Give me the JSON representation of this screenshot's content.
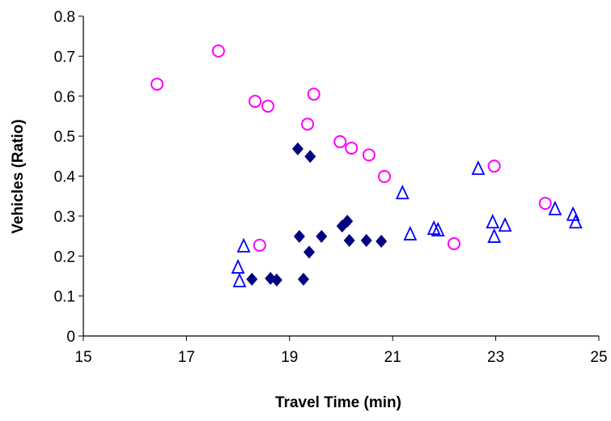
{
  "chart_data": {
    "type": "scatter",
    "xlabel": "Travel Time (min)",
    "ylabel": "Vehicles (Ratio)",
    "xlim": [
      15,
      25
    ],
    "xticks": [
      15,
      17,
      19,
      21,
      23,
      25
    ],
    "ylim": [
      0,
      0.8
    ],
    "yticks": [
      0,
      0.1,
      0.2,
      0.3,
      0.4,
      0.5,
      0.6,
      0.7,
      0.8
    ],
    "grid": false,
    "series": [
      {
        "color": "#ff00ff",
        "marker": "circle",
        "x": [
          16.43,
          17.62,
          18.33,
          18.58,
          19.47,
          19.35,
          18.42,
          19.98,
          20.2,
          20.54,
          20.84,
          22.19,
          22.97,
          23.96
        ],
        "y": [
          0.63,
          0.713,
          0.587,
          0.575,
          0.605,
          0.53,
          0.227,
          0.486,
          0.47,
          0.453,
          0.399,
          0.231,
          0.425,
          0.332
        ]
      },
      {
        "color": "#000080",
        "marker": "diamond",
        "x": [
          19.16,
          19.4,
          18.27,
          18.63,
          18.75,
          19.19,
          19.27,
          19.38,
          19.62,
          20.02,
          20.12,
          20.16,
          20.49,
          20.78
        ],
        "y": [
          0.468,
          0.449,
          0.142,
          0.144,
          0.14,
          0.249,
          0.142,
          0.21,
          0.249,
          0.275,
          0.287,
          0.239,
          0.239,
          0.237
        ]
      },
      {
        "color": "#0000ff",
        "marker": "triangle",
        "x": [
          18.11,
          18.0,
          18.03,
          21.19,
          21.34,
          21.8,
          21.88,
          22.66,
          22.94,
          22.97,
          23.18,
          24.15,
          24.5,
          24.55
        ],
        "y": [
          0.223,
          0.17,
          0.136,
          0.356,
          0.253,
          0.267,
          0.263,
          0.417,
          0.283,
          0.247,
          0.275,
          0.316,
          0.302,
          0.283
        ]
      }
    ]
  }
}
